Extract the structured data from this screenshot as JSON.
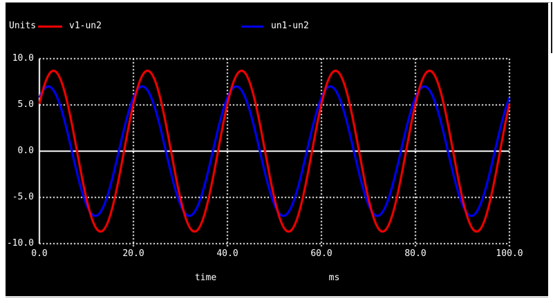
{
  "window": {
    "units_label": "Units"
  },
  "chart_data": {
    "type": "line",
    "title": "",
    "xlabel": "time",
    "x_unit": "ms",
    "ylabel": "",
    "xlim": [
      0,
      100
    ],
    "ylim": [
      -10,
      10
    ],
    "x_ticks": [
      "0.0",
      "20.0",
      "40.0",
      "60.0",
      "80.0",
      "100.0"
    ],
    "y_ticks": [
      "10.0",
      "5.0",
      "0.0",
      "-5.0",
      "-10.0"
    ],
    "grid": "dotted-white-on-black",
    "legend_position": "top",
    "background_color": "#000000",
    "axis_color": "#ffffff",
    "series": [
      {
        "name": "v1-un2",
        "color": "#ff0000",
        "waveform": "sine",
        "amplitude": 8.7,
        "period_ms": 20,
        "phase_offset_ms": 2.0,
        "cycles_shown": 5,
        "value_at_t0": 5.1,
        "first_peak_ms": 3.0
      },
      {
        "name": "un1-un2",
        "color": "#0000ff",
        "waveform": "sine",
        "amplitude": 7.0,
        "period_ms": 20,
        "phase_offset_ms": 3.1,
        "cycles_shown": 5,
        "value_at_t0": 5.8,
        "first_peak_ms": 1.9
      }
    ]
  }
}
